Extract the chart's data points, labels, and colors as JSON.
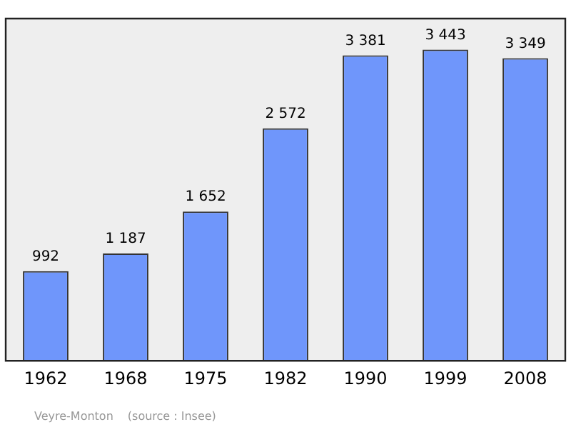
{
  "chart_data": {
    "type": "bar",
    "categories": [
      "1962",
      "1968",
      "1975",
      "1982",
      "1990",
      "1999",
      "2008"
    ],
    "values": [
      992,
      1187,
      1652,
      2572,
      3381,
      3443,
      3349
    ],
    "value_labels": [
      "992",
      "1 187",
      "1 652",
      "2 572",
      "3 381",
      "3 443",
      "3 349"
    ],
    "color": "#6f96fb",
    "grid": false,
    "legend": false,
    "annotations": [
      "Veyre-Monton",
      "(source : Insee)"
    ]
  }
}
